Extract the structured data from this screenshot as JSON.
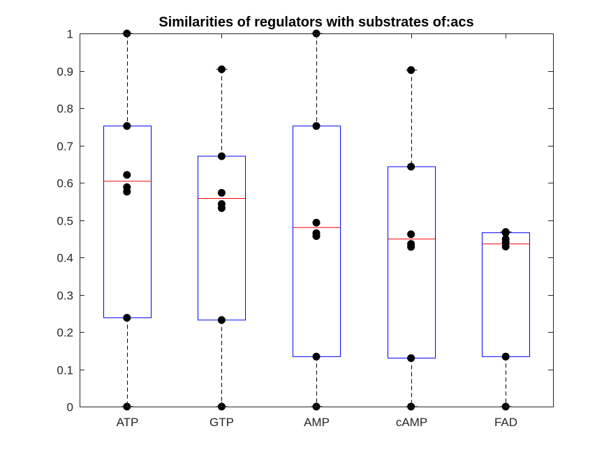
{
  "chart_data": {
    "type": "box",
    "title": "Similarities of regulators with substrates of:acs",
    "xlabel": "",
    "ylabel": "",
    "ylim": [
      0,
      1
    ],
    "yticks": [
      0,
      0.1,
      0.2,
      0.3,
      0.4,
      0.5,
      0.6,
      0.7,
      0.8,
      0.9,
      1
    ],
    "ytick_labels": [
      "0",
      "0.1",
      "0.2",
      "0.3",
      "0.4",
      "0.5",
      "0.6",
      "0.7",
      "0.8",
      "0.9",
      "1"
    ],
    "grid": false,
    "legend": "none",
    "categories": [
      "ATP",
      "GTP",
      "AMP",
      "cAMP",
      "FAD"
    ],
    "boxes": [
      {
        "name": "ATP",
        "whisker_low": 0,
        "q1": 0.238,
        "median": 0.604,
        "q3": 0.752,
        "whisker_high": 1
      },
      {
        "name": "GTP",
        "whisker_low": 0,
        "q1": 0.232,
        "median": 0.558,
        "q3": 0.671,
        "whisker_high": 0.904
      },
      {
        "name": "AMP",
        "whisker_low": 0,
        "q1": 0.134,
        "median": 0.48,
        "q3": 0.752,
        "whisker_high": 1
      },
      {
        "name": "cAMP",
        "whisker_low": 0,
        "q1": 0.13,
        "median": 0.449,
        "q3": 0.643,
        "whisker_high": 0.902
      },
      {
        "name": "FAD",
        "whisker_low": 0,
        "q1": 0.134,
        "median": 0.436,
        "q3": 0.466,
        "whisker_high": 0.468
      }
    ],
    "points": [
      {
        "category": "ATP",
        "values": [
          0,
          0.238,
          0.576,
          0.588,
          0.621,
          0.752,
          1
        ]
      },
      {
        "category": "GTP",
        "values": [
          0,
          0.232,
          0.532,
          0.543,
          0.573,
          0.671,
          0.904
        ]
      },
      {
        "category": "AMP",
        "values": [
          0,
          0.134,
          0.457,
          0.465,
          0.493,
          0.752,
          1
        ]
      },
      {
        "category": "cAMP",
        "values": [
          0,
          0.13,
          0.428,
          0.436,
          0.462,
          0.643,
          0.902
        ]
      },
      {
        "category": "FAD",
        "values": [
          0,
          0.134,
          0.429,
          0.44,
          0.449,
          0.466,
          0.468
        ]
      }
    ],
    "colors": {
      "box": "#0000ff",
      "median": "#ff0000",
      "whisker": "#000000",
      "points": "#000000",
      "axes": "#262626"
    }
  }
}
